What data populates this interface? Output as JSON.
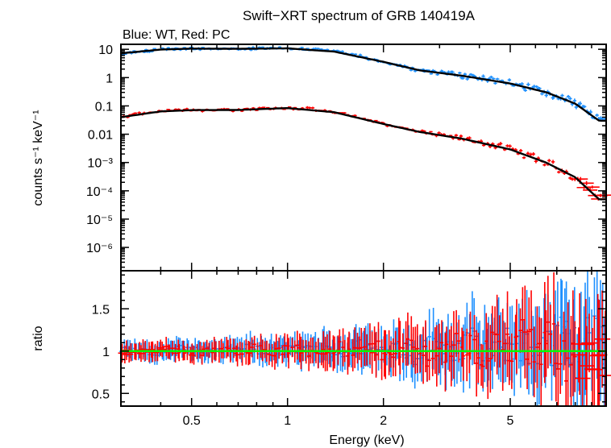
{
  "chart_data": {
    "type": "scatter",
    "title": "Swift−XRT spectrum of GRB 140419A",
    "subtitle": "Blue: WT, Red: PC",
    "xlabel": "Energy (keV)",
    "x_scale": "log",
    "xlim": [
      0.3,
      10
    ],
    "x_ticks": [
      0.5,
      1,
      2,
      5
    ],
    "x_tick_labels": [
      "0.5",
      "1",
      "2",
      "5"
    ],
    "panels": [
      {
        "name": "spectrum",
        "ylabel": "counts s⁻¹ keV⁻¹",
        "y_scale": "log",
        "ylim": [
          1.5e-07,
          15
        ],
        "y_ticks": [
          10,
          1,
          0.1,
          0.01,
          0.001,
          0.0001,
          1e-05,
          1e-06
        ],
        "y_tick_labels": [
          "10",
          "1",
          "0.1",
          "0.01",
          "10⁻³",
          "10⁻⁴",
          "10⁻⁵",
          "10⁻⁶"
        ],
        "series": [
          {
            "color": "#1e90ff",
            "x": [
              0.3,
              0.35,
              0.4,
              0.45,
              0.5,
              0.6,
              0.7,
              0.8,
              0.9,
              1.0,
              1.2,
              1.4,
              1.6,
              1.8,
              2.0,
              2.3,
              2.6,
              3.0,
              3.5,
              4.0,
              4.5,
              5.0,
              5.5,
              6.0,
              6.5,
              7.0,
              7.5,
              8.0,
              8.5,
              9.0,
              9.5
            ],
            "y": [
              7.0,
              8.5,
              10.0,
              10.5,
              10.8,
              10.0,
              10.5,
              10.8,
              11.0,
              11.0,
              10.0,
              8.5,
              6.5,
              4.8,
              3.6,
              2.4,
              1.8,
              1.45,
              1.2,
              0.95,
              0.78,
              0.62,
              0.48,
              0.38,
              0.3,
              0.23,
              0.17,
              0.12,
              0.09,
              0.06,
              0.035
            ]
          },
          {
            "color": "#ff0000",
            "x": [
              0.3,
              0.35,
              0.4,
              0.45,
              0.5,
              0.6,
              0.7,
              0.8,
              0.9,
              1.0,
              1.2,
              1.4,
              1.6,
              1.8,
              2.0,
              2.3,
              2.6,
              3.0,
              3.5,
              4.0,
              4.5,
              5.0,
              5.5,
              6.0,
              6.5,
              7.0,
              7.5,
              8.0,
              8.5,
              9.0,
              9.5
            ],
            "y": [
              0.04,
              0.055,
              0.065,
              0.07,
              0.072,
              0.07,
              0.073,
              0.078,
              0.082,
              0.085,
              0.077,
              0.06,
              0.045,
              0.032,
              0.023,
              0.016,
              0.012,
              0.0092,
              0.0072,
              0.0055,
              0.004,
              0.0029,
              0.002,
              0.0014,
              0.00098,
              0.00067,
              0.00045,
              0.0003,
              0.00019,
              0.00012,
              5e-05
            ]
          },
          {
            "color": "#000000",
            "x": [
              0.3,
              0.4,
              0.5,
              0.7,
              1.0,
              1.4,
              2.0,
              2.6,
              3.5,
              5.0,
              6.5,
              8.0,
              9.5
            ],
            "y": [
              7.2,
              9.8,
              10.6,
              10.4,
              10.8,
              8.3,
              3.6,
              1.8,
              1.18,
              0.62,
              0.3,
              0.12,
              0.03
            ]
          },
          {
            "color": "#000000",
            "x": [
              0.3,
              0.4,
              0.5,
              0.7,
              1.0,
              1.4,
              2.0,
              2.6,
              3.5,
              5.0,
              6.5,
              8.0,
              9.5
            ],
            "y": [
              0.04,
              0.064,
              0.071,
              0.072,
              0.084,
              0.06,
              0.023,
              0.012,
              0.0071,
              0.0029,
              0.00098,
              0.0003,
              5e-05
            ]
          }
        ]
      },
      {
        "name": "ratio",
        "ylabel": "ratio",
        "y_scale": "linear",
        "ylim": [
          0.35,
          1.95
        ],
        "y_ticks": [
          0.5,
          1,
          1.5
        ],
        "y_tick_labels": [
          "0.5",
          "1",
          "1.5"
        ],
        "reference_line": {
          "y": 1,
          "color": "#00ff00"
        },
        "series": [
          {
            "color": "#1e90ff",
            "x": [
              0.32,
              0.38,
              0.45,
              0.55,
              0.65,
              0.75,
              0.85,
              0.95,
              1.1,
              1.3,
              1.5,
              1.7,
              1.9,
              2.2,
              2.5,
              2.9,
              3.3,
              3.8,
              4.3,
              4.8,
              5.3,
              5.8,
              6.3,
              6.8,
              7.3,
              7.8,
              8.3,
              8.8,
              9.3
            ],
            "y": [
              1.05,
              0.95,
              1.08,
              0.98,
              1.02,
              1.1,
              0.97,
              1.03,
              1.0,
              1.06,
              0.96,
              1.12,
              1.0,
              1.08,
              0.92,
              1.15,
              1.02,
              1.2,
              0.95,
              1.1,
              1.25,
              0.9,
              1.3,
              1.05,
              1.4,
              1.15,
              0.85,
              1.5,
              1.2
            ]
          },
          {
            "color": "#ff0000",
            "x": [
              0.34,
              0.42,
              0.5,
              0.6,
              0.7,
              0.8,
              0.9,
              1.0,
              1.2,
              1.4,
              1.6,
              1.8,
              2.0,
              2.4,
              2.8,
              3.2,
              3.6,
              4.0,
              4.5,
              5.0,
              5.5,
              6.0,
              6.5,
              7.0,
              7.5,
              8.0,
              8.5,
              9.2
            ],
            "y": [
              0.98,
              1.05,
              0.95,
              1.02,
              1.0,
              1.08,
              0.96,
              1.04,
              0.98,
              1.1,
              0.94,
              1.06,
              1.0,
              1.12,
              0.9,
              1.08,
              1.15,
              0.92,
              1.2,
              1.05,
              1.3,
              0.88,
              1.25,
              1.1,
              0.8,
              1.35,
              0.75,
              0.7
            ]
          }
        ]
      }
    ]
  }
}
